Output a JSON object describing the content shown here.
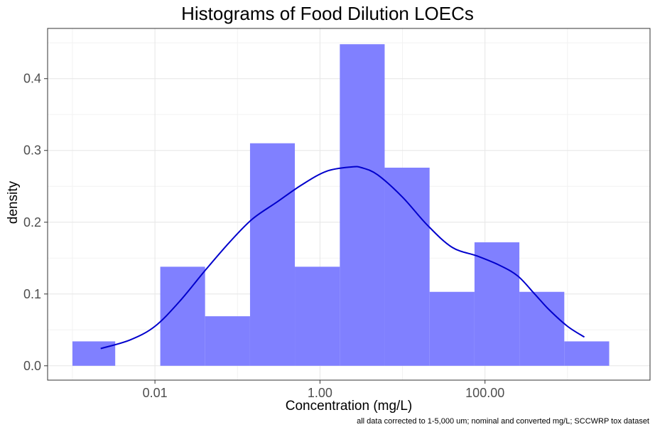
{
  "chart_data": {
    "type": "histogram",
    "title": "Histograms of Food Dilution LOECs",
    "xlabel": "Concentration (mg/L)",
    "ylabel": "density",
    "caption": "all data corrected to 1-5,000 um; nominal and converted mg/L; SCCWRP tox dataset",
    "x_scale": "log10",
    "xlim": [
      0.0005,
      10000
    ],
    "ylim": [
      -0.02,
      0.47
    ],
    "x_ticks": [
      0.01,
      1,
      100
    ],
    "x_tick_labels": [
      "0.01",
      "1.00",
      "100.00"
    ],
    "y_ticks": [
      0,
      0.1,
      0.2,
      0.3,
      0.4
    ],
    "y_tick_labels": [
      "0.0",
      "0.1",
      "0.2",
      "0.3",
      "0.4"
    ],
    "grid": true,
    "bin_edges": [
      0.001,
      0.0033,
      0.0116,
      0.0405,
      0.142,
      0.496,
      1.74,
      6.08,
      21.3,
      74.6,
      261,
      914,
      3200
    ],
    "density": [
      0.034,
      0.0,
      0.138,
      0.069,
      0.31,
      0.138,
      0.448,
      0.276,
      0.103,
      0.172,
      0.103,
      0.034
    ],
    "bar_color": "#8080ff",
    "density_curve": {
      "color": "#0000cc",
      "x": [
        0.0022,
        0.005,
        0.01,
        0.02,
        0.04,
        0.08,
        0.15,
        0.3,
        0.6,
        1.2,
        2.4,
        3.2,
        5,
        10,
        20,
        40,
        80,
        150,
        250,
        400,
        600,
        1000,
        1600
      ],
      "y": [
        0.024,
        0.036,
        0.055,
        0.09,
        0.132,
        0.172,
        0.204,
        0.228,
        0.252,
        0.271,
        0.277,
        0.276,
        0.266,
        0.235,
        0.196,
        0.165,
        0.153,
        0.14,
        0.125,
        0.1,
        0.078,
        0.055,
        0.04
      ]
    }
  }
}
